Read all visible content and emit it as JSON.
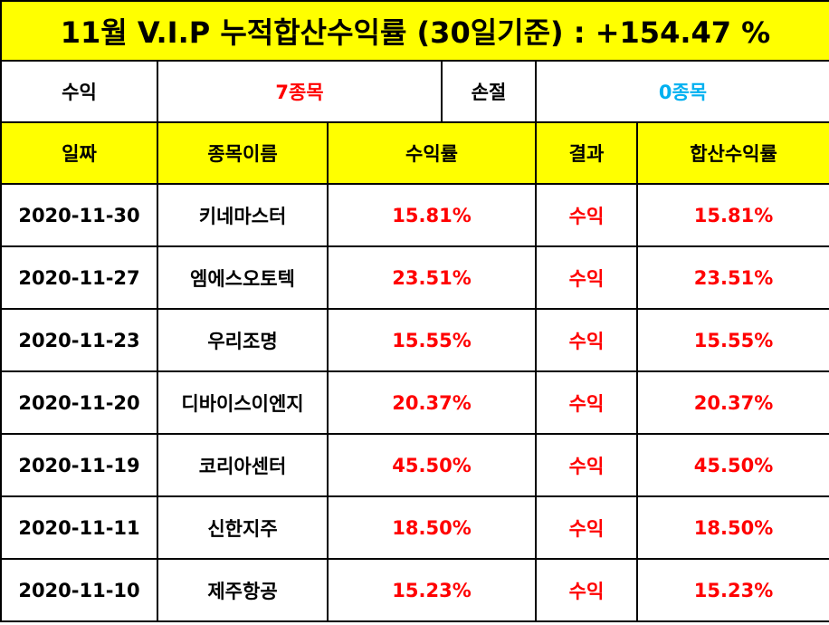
{
  "title": "11월 V.I.P 누적합산수익률 (30일기준) : +154.47 %",
  "summary": {
    "profit_label": "수익",
    "profit_value": "7종목",
    "loss_label": "손절",
    "loss_value": "0종목"
  },
  "headers": {
    "date": "일짜",
    "name": "종목이름",
    "return": "수익률",
    "result": "결과",
    "cumulative": "합산수익률"
  },
  "rows": [
    {
      "date": "2020-11-30",
      "name": "키네마스터",
      "return": "15.81%",
      "result": "수익",
      "cumulative": "15.81%"
    },
    {
      "date": "2020-11-27",
      "name": "엠에스오토텍",
      "return": "23.51%",
      "result": "수익",
      "cumulative": "23.51%"
    },
    {
      "date": "2020-11-23",
      "name": "우리조명",
      "return": "15.55%",
      "result": "수익",
      "cumulative": "15.55%"
    },
    {
      "date": "2020-11-20",
      "name": "디바이스이엔지",
      "return": "20.37%",
      "result": "수익",
      "cumulative": "20.37%"
    },
    {
      "date": "2020-11-19",
      "name": "코리아센터",
      "return": "45.50%",
      "result": "수익",
      "cumulative": "45.50%"
    },
    {
      "date": "2020-11-11",
      "name": "신한지주",
      "return": "18.50%",
      "result": "수익",
      "cumulative": "18.50%"
    },
    {
      "date": "2020-11-10",
      "name": "제주항공",
      "return": "15.23%",
      "result": "수익",
      "cumulative": "15.23%"
    }
  ],
  "colors": {
    "header_bg": "#ffff00",
    "profit": "#ff0000",
    "loss": "#00b0f0",
    "border": "#000000"
  }
}
